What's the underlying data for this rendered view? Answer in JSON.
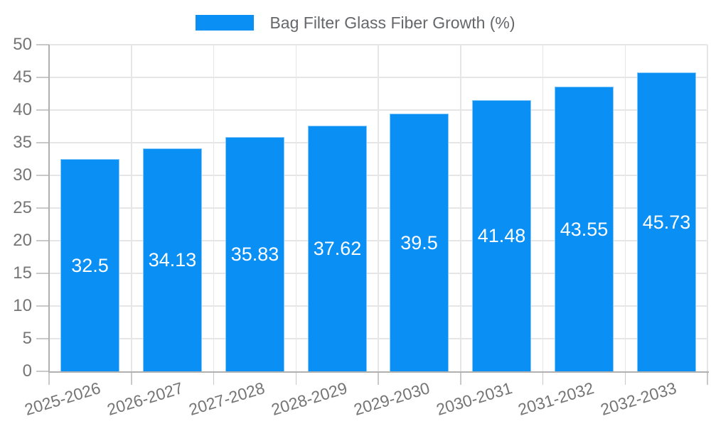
{
  "page": {
    "background": "#ffffff"
  },
  "legend": {
    "label": "Bag Filter Glass Fiber Growth (%)"
  },
  "chart_data": {
    "type": "bar",
    "title": "Bag Filter Glass Fiber Growth (%)",
    "series_name": "Bag Filter Glass Fiber Growth (%)",
    "categories": [
      "2025-2026",
      "2026-2027",
      "2027-2028",
      "2028-2029",
      "2029-2030",
      "2030-2031",
      "2031-2032",
      "2032-2033"
    ],
    "values": [
      32.5,
      34.13,
      35.83,
      37.62,
      39.5,
      41.48,
      43.55,
      45.73
    ],
    "ylim": [
      0,
      50
    ],
    "ytick_step": 5,
    "yticks": [
      0,
      5,
      10,
      15,
      20,
      25,
      30,
      35,
      40,
      45,
      50
    ],
    "grid": true,
    "legend_position": "top",
    "value_label_position": "inside-center",
    "x_label_rotation_deg": -17,
    "colors": {
      "bar": "#0a8ff5",
      "bar_border": "#85c8fa",
      "value_label": "#ffffff",
      "grid": "#e6e6e6",
      "axis": "#b0b0b0",
      "tick": "#c9c9c9",
      "tick_label": "#757575",
      "legend_text": "#65676a"
    }
  }
}
